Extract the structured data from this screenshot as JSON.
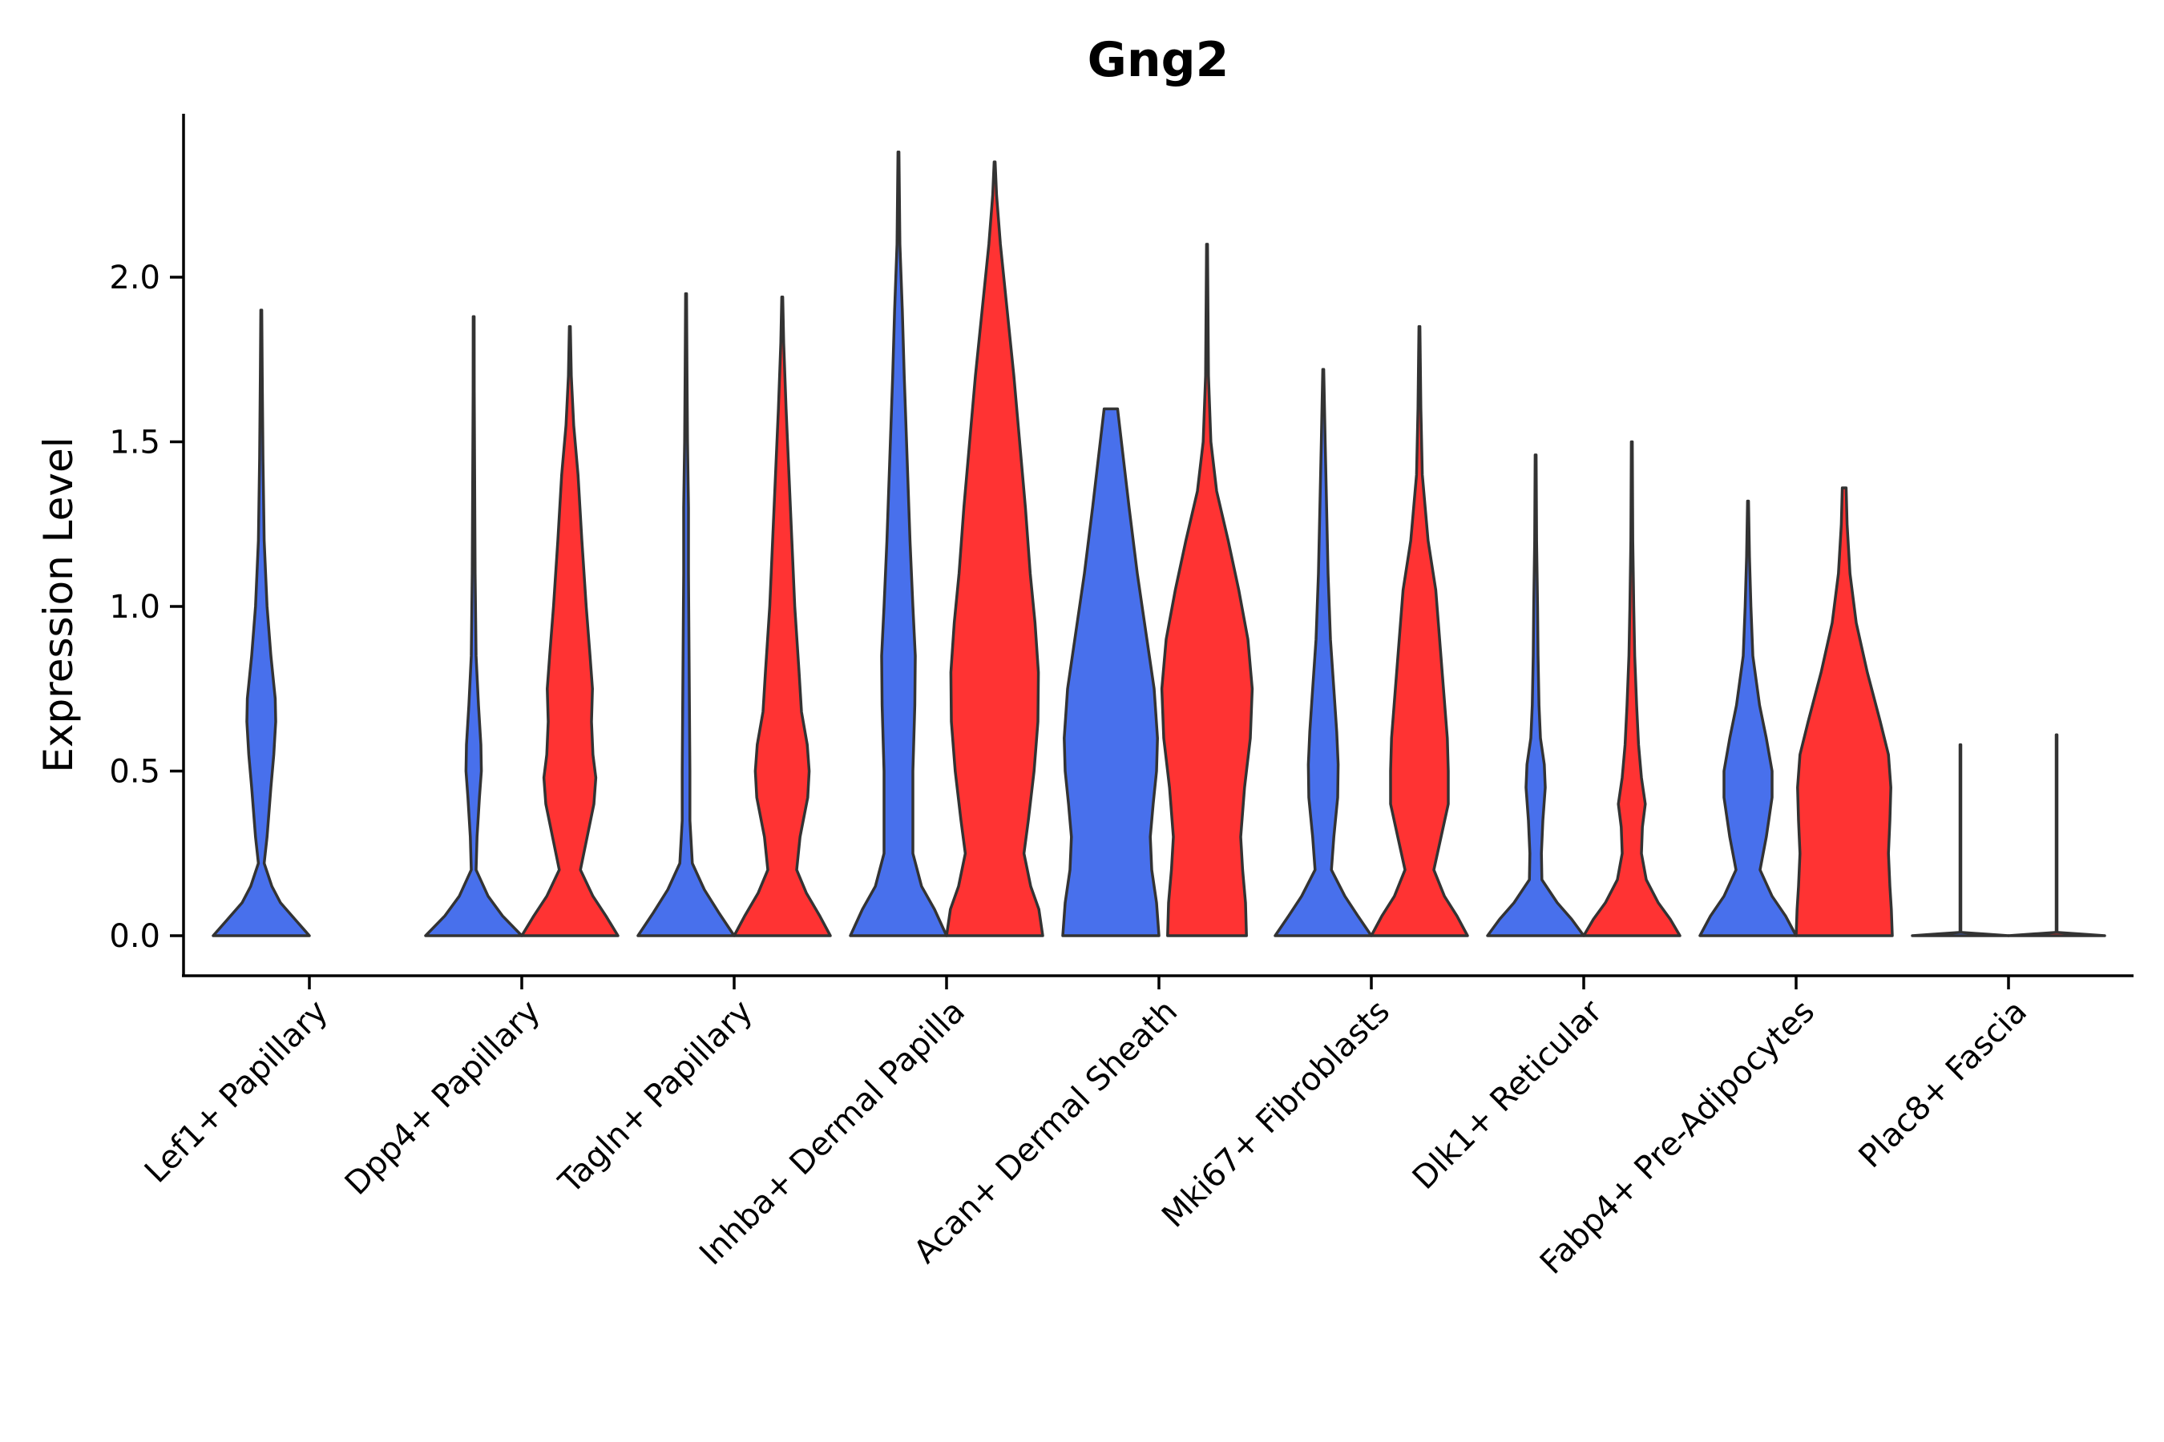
{
  "chart_data": {
    "type": "violin",
    "title": "Gng2",
    "xlabel": "",
    "ylabel": "Expression Level",
    "ylim": [
      -0.12,
      2.5
    ],
    "y_ticks": [
      "0.0",
      "0.5",
      "1.0",
      "1.5",
      "2.0"
    ],
    "grid": false,
    "legend": "none",
    "series_colors": [
      "#4870ec",
      "#ff3333"
    ],
    "categories": [
      "Lef1+ Papillary",
      "Dpp4+ Papillary",
      "Tagln+ Papillary",
      "Inhba+ Dermal Papilla",
      "Acan+ Dermal Sheath",
      "Mki67+ Fibroblasts",
      "Dlk1+ Reticular",
      "Fabp4+ Pre-Adipocytes",
      "Plac8+ Fascia"
    ],
    "violins": [
      {
        "category": "Lef1+ Papillary",
        "group": 1,
        "color": "#4870ec",
        "max": 1.9,
        "profile": [
          [
            0,
            1
          ],
          [
            0.05,
            0.7
          ],
          [
            0.1,
            0.4
          ],
          [
            0.15,
            0.22
          ],
          [
            0.22,
            0.06
          ],
          [
            0.3,
            0.12
          ],
          [
            0.45,
            0.2
          ],
          [
            0.55,
            0.26
          ],
          [
            0.65,
            0.3
          ],
          [
            0.72,
            0.29
          ],
          [
            0.85,
            0.2
          ],
          [
            1.0,
            0.12
          ],
          [
            1.2,
            0.06
          ],
          [
            1.45,
            0.035
          ],
          [
            1.7,
            0.02
          ],
          [
            1.9,
            0.01
          ]
        ]
      },
      {
        "category": "Dpp4+ Papillary",
        "group": 1,
        "color": "#4870ec",
        "max": 1.88,
        "profile": [
          [
            0,
            1
          ],
          [
            0.06,
            0.6
          ],
          [
            0.12,
            0.3
          ],
          [
            0.2,
            0.05
          ],
          [
            0.3,
            0.07
          ],
          [
            0.42,
            0.12
          ],
          [
            0.5,
            0.16
          ],
          [
            0.58,
            0.15
          ],
          [
            0.7,
            0.1
          ],
          [
            0.85,
            0.05
          ],
          [
            1.1,
            0.03
          ],
          [
            1.4,
            0.02
          ],
          [
            1.65,
            0.012
          ],
          [
            1.88,
            0.01
          ]
        ]
      },
      {
        "category": "Dpp4+ Papillary",
        "group": 2,
        "color": "#ff3333",
        "max": 1.85,
        "profile": [
          [
            0,
            1
          ],
          [
            0.06,
            0.75
          ],
          [
            0.12,
            0.48
          ],
          [
            0.2,
            0.22
          ],
          [
            0.3,
            0.36
          ],
          [
            0.4,
            0.5
          ],
          [
            0.48,
            0.54
          ],
          [
            0.55,
            0.48
          ],
          [
            0.65,
            0.45
          ],
          [
            0.75,
            0.47
          ],
          [
            0.85,
            0.42
          ],
          [
            1.0,
            0.34
          ],
          [
            1.2,
            0.25
          ],
          [
            1.4,
            0.17
          ],
          [
            1.55,
            0.08
          ],
          [
            1.7,
            0.03
          ],
          [
            1.85,
            0.01
          ]
        ]
      },
      {
        "category": "Tagln+ Papillary",
        "group": 1,
        "color": "#4870ec",
        "max": 1.95,
        "profile": [
          [
            0,
            1
          ],
          [
            0.07,
            0.68
          ],
          [
            0.14,
            0.38
          ],
          [
            0.22,
            0.13
          ],
          [
            0.35,
            0.08
          ],
          [
            0.5,
            0.08
          ],
          [
            0.7,
            0.07
          ],
          [
            0.9,
            0.06
          ],
          [
            1.1,
            0.05
          ],
          [
            1.3,
            0.05
          ],
          [
            1.5,
            0.03
          ],
          [
            1.7,
            0.02
          ],
          [
            1.95,
            0.01
          ]
        ]
      },
      {
        "category": "Tagln+ Papillary",
        "group": 2,
        "color": "#ff3333",
        "max": 1.94,
        "profile": [
          [
            0,
            1
          ],
          [
            0.06,
            0.78
          ],
          [
            0.13,
            0.5
          ],
          [
            0.2,
            0.3
          ],
          [
            0.3,
            0.37
          ],
          [
            0.42,
            0.53
          ],
          [
            0.5,
            0.56
          ],
          [
            0.58,
            0.52
          ],
          [
            0.68,
            0.4
          ],
          [
            0.8,
            0.35
          ],
          [
            1.0,
            0.26
          ],
          [
            1.2,
            0.2
          ],
          [
            1.4,
            0.14
          ],
          [
            1.6,
            0.08
          ],
          [
            1.8,
            0.03
          ],
          [
            1.94,
            0.01
          ]
        ]
      },
      {
        "category": "Inhba+ Dermal Papilla",
        "group": 1,
        "color": "#4870ec",
        "max": 2.38,
        "profile": [
          [
            0,
            1
          ],
          [
            0.08,
            0.75
          ],
          [
            0.15,
            0.48
          ],
          [
            0.25,
            0.3
          ],
          [
            0.35,
            0.3
          ],
          [
            0.5,
            0.3
          ],
          [
            0.7,
            0.34
          ],
          [
            0.85,
            0.35
          ],
          [
            1.0,
            0.3
          ],
          [
            1.2,
            0.24
          ],
          [
            1.45,
            0.18
          ],
          [
            1.7,
            0.12
          ],
          [
            1.9,
            0.08
          ],
          [
            2.1,
            0.03
          ],
          [
            2.38,
            0.01
          ]
        ]
      },
      {
        "category": "Inhba+ Dermal Papilla",
        "group": 2,
        "color": "#ff3333",
        "max": 2.35,
        "profile": [
          [
            0,
            1
          ],
          [
            0.08,
            0.92
          ],
          [
            0.15,
            0.75
          ],
          [
            0.25,
            0.61
          ],
          [
            0.35,
            0.7
          ],
          [
            0.5,
            0.82
          ],
          [
            0.65,
            0.9
          ],
          [
            0.8,
            0.91
          ],
          [
            0.95,
            0.84
          ],
          [
            1.1,
            0.74
          ],
          [
            1.3,
            0.64
          ],
          [
            1.5,
            0.52
          ],
          [
            1.7,
            0.4
          ],
          [
            1.9,
            0.26
          ],
          [
            2.1,
            0.12
          ],
          [
            2.25,
            0.04
          ],
          [
            2.35,
            0.01
          ]
        ]
      },
      {
        "category": "Acan+ Dermal Sheath",
        "group": 1,
        "color": "#4870ec",
        "max": 1.6,
        "profile": [
          [
            0,
            1
          ],
          [
            0.1,
            0.95
          ],
          [
            0.2,
            0.85
          ],
          [
            0.3,
            0.82
          ],
          [
            0.4,
            0.88
          ],
          [
            0.5,
            0.95
          ],
          [
            0.6,
            0.97
          ],
          [
            0.75,
            0.9
          ],
          [
            0.9,
            0.75
          ],
          [
            1.1,
            0.55
          ],
          [
            1.3,
            0.38
          ],
          [
            1.45,
            0.26
          ],
          [
            1.55,
            0.18
          ],
          [
            1.6,
            0.14
          ]
        ]
      },
      {
        "category": "Acan+ Dermal Sheath",
        "group": 2,
        "color": "#ff3333",
        "max": 2.1,
        "profile": [
          [
            0,
            0.82
          ],
          [
            0.1,
            0.8
          ],
          [
            0.2,
            0.74
          ],
          [
            0.3,
            0.7
          ],
          [
            0.45,
            0.78
          ],
          [
            0.6,
            0.9
          ],
          [
            0.75,
            0.94
          ],
          [
            0.9,
            0.85
          ],
          [
            1.05,
            0.66
          ],
          [
            1.2,
            0.44
          ],
          [
            1.35,
            0.2
          ],
          [
            1.5,
            0.08
          ],
          [
            1.7,
            0.03
          ],
          [
            1.9,
            0.02
          ],
          [
            2.1,
            0.01
          ]
        ]
      },
      {
        "category": "Mki67+ Fibroblasts",
        "group": 1,
        "color": "#4870ec",
        "max": 1.72,
        "profile": [
          [
            0,
            1
          ],
          [
            0.06,
            0.72
          ],
          [
            0.12,
            0.45
          ],
          [
            0.2,
            0.17
          ],
          [
            0.3,
            0.22
          ],
          [
            0.42,
            0.3
          ],
          [
            0.52,
            0.31
          ],
          [
            0.62,
            0.28
          ],
          [
            0.75,
            0.22
          ],
          [
            0.9,
            0.15
          ],
          [
            1.1,
            0.1
          ],
          [
            1.3,
            0.07
          ],
          [
            1.5,
            0.04
          ],
          [
            1.72,
            0.01
          ]
        ]
      },
      {
        "category": "Mki67+ Fibroblasts",
        "group": 2,
        "color": "#ff3333",
        "max": 1.85,
        "profile": [
          [
            0,
            1
          ],
          [
            0.06,
            0.78
          ],
          [
            0.12,
            0.52
          ],
          [
            0.2,
            0.3
          ],
          [
            0.3,
            0.45
          ],
          [
            0.4,
            0.6
          ],
          [
            0.5,
            0.6
          ],
          [
            0.6,
            0.58
          ],
          [
            0.75,
            0.5
          ],
          [
            0.9,
            0.42
          ],
          [
            1.05,
            0.34
          ],
          [
            1.2,
            0.18
          ],
          [
            1.4,
            0.06
          ],
          [
            1.6,
            0.03
          ],
          [
            1.85,
            0.01
          ]
        ]
      },
      {
        "category": "Dlk1+ Reticular",
        "group": 1,
        "color": "#4870ec",
        "max": 1.46,
        "profile": [
          [
            0,
            1
          ],
          [
            0.05,
            0.75
          ],
          [
            0.1,
            0.45
          ],
          [
            0.17,
            0.13
          ],
          [
            0.25,
            0.12
          ],
          [
            0.35,
            0.15
          ],
          [
            0.45,
            0.2
          ],
          [
            0.52,
            0.18
          ],
          [
            0.6,
            0.1
          ],
          [
            0.7,
            0.07
          ],
          [
            0.85,
            0.05
          ],
          [
            1.0,
            0.04
          ],
          [
            1.2,
            0.02
          ],
          [
            1.46,
            0.01
          ]
        ]
      },
      {
        "category": "Dlk1+ Reticular",
        "group": 2,
        "color": "#ff3333",
        "max": 1.5,
        "profile": [
          [
            0,
            1
          ],
          [
            0.05,
            0.8
          ],
          [
            0.1,
            0.55
          ],
          [
            0.17,
            0.3
          ],
          [
            0.25,
            0.2
          ],
          [
            0.33,
            0.22
          ],
          [
            0.4,
            0.28
          ],
          [
            0.48,
            0.2
          ],
          [
            0.58,
            0.14
          ],
          [
            0.7,
            0.1
          ],
          [
            0.85,
            0.06
          ],
          [
            1.0,
            0.04
          ],
          [
            1.2,
            0.02
          ],
          [
            1.5,
            0.01
          ]
        ]
      },
      {
        "category": "Fabp4+ Pre-Adipocytes",
        "group": 1,
        "color": "#4870ec",
        "max": 1.32,
        "profile": [
          [
            0,
            1
          ],
          [
            0.06,
            0.78
          ],
          [
            0.12,
            0.5
          ],
          [
            0.2,
            0.25
          ],
          [
            0.3,
            0.38
          ],
          [
            0.42,
            0.5
          ],
          [
            0.5,
            0.5
          ],
          [
            0.6,
            0.38
          ],
          [
            0.7,
            0.24
          ],
          [
            0.85,
            0.1
          ],
          [
            1.0,
            0.06
          ],
          [
            1.15,
            0.03
          ],
          [
            1.32,
            0.01
          ]
        ]
      },
      {
        "category": "Fabp4+ Pre-Adipocytes",
        "group": 2,
        "color": "#ff3333",
        "max": 1.36,
        "profile": [
          [
            0,
            1
          ],
          [
            0.08,
            0.98
          ],
          [
            0.15,
            0.95
          ],
          [
            0.25,
            0.92
          ],
          [
            0.35,
            0.95
          ],
          [
            0.45,
            0.97
          ],
          [
            0.55,
            0.92
          ],
          [
            0.65,
            0.75
          ],
          [
            0.8,
            0.48
          ],
          [
            0.95,
            0.25
          ],
          [
            1.1,
            0.12
          ],
          [
            1.25,
            0.06
          ],
          [
            1.36,
            0.04
          ]
        ]
      },
      {
        "category": "Plac8+ Fascia",
        "group": 1,
        "color": "#4870ec",
        "max": 0.58,
        "profile": [
          [
            0,
            1
          ],
          [
            0.005,
            0.5
          ],
          [
            0.01,
            0.008
          ],
          [
            0.58,
            0.008
          ]
        ]
      },
      {
        "category": "Plac8+ Fascia",
        "group": 2,
        "color": "#ff3333",
        "max": 0.61,
        "profile": [
          [
            0,
            1
          ],
          [
            0.005,
            0.5
          ],
          [
            0.01,
            0.008
          ],
          [
            0.61,
            0.008
          ]
        ]
      }
    ]
  }
}
